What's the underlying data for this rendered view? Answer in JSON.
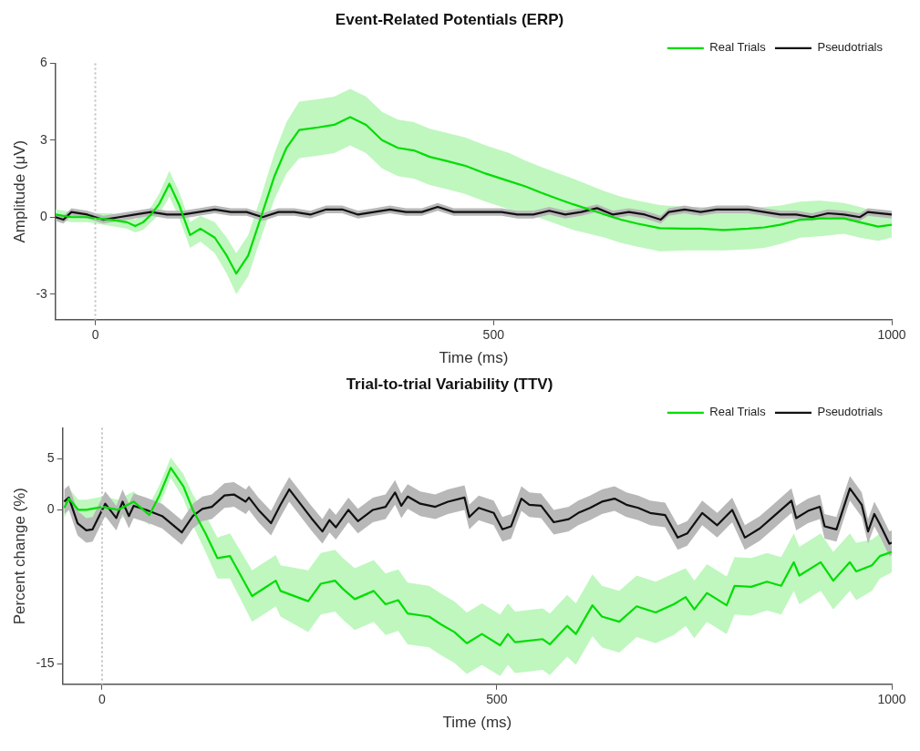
{
  "chart_data": [
    {
      "type": "line",
      "title": "Event-Related Potentials (ERP)",
      "xlabel": "Time (ms)",
      "ylabel": "Amplitude (μV)",
      "xlim": [
        -50,
        1000
      ],
      "xticks": [
        0,
        500,
        1000
      ],
      "ylim": [
        -4,
        6
      ],
      "yticks": [
        -3,
        0,
        3,
        6
      ],
      "legend": "top right",
      "ref_lines": [
        {
          "axis": "x",
          "value": 0,
          "color": "#c0c0c0",
          "line_style": "dotted"
        }
      ],
      "series": [
        {
          "name": "Real Trials",
          "color": "#00dd00",
          "x": [
            -50,
            -30,
            -10,
            0,
            20,
            40,
            50,
            60,
            70,
            80,
            93,
            105,
            119,
            132,
            150,
            165,
            177,
            192,
            208,
            225,
            240,
            256,
            280,
            300,
            320,
            340,
            360,
            380,
            400,
            420,
            440,
            465,
            490,
            520,
            540,
            560,
            580,
            600,
            620,
            640,
            660,
            680,
            709,
            740,
            760,
            789,
            820,
            840,
            860,
            885,
            910,
            940,
            960,
            983,
            1000
          ],
          "values": [
            0.1,
            0,
            0,
            -0.05,
            -0.1,
            -0.2,
            -0.35,
            -0.2,
            0.1,
            0.5,
            1.3,
            0.5,
            -0.7,
            -0.45,
            -0.8,
            -1.5,
            -2.2,
            -1.5,
            0,
            1.6,
            2.7,
            3.4,
            3.5,
            3.6,
            3.9,
            3.6,
            3.0,
            2.7,
            2.6,
            2.35,
            2.2,
            2.0,
            1.7,
            1.4,
            1.2,
            0.95,
            0.72,
            0.5,
            0.3,
            0.1,
            -0.1,
            -0.25,
            -0.43,
            -0.45,
            -0.45,
            -0.5,
            -0.45,
            -0.4,
            -0.3,
            -0.1,
            -0.05,
            -0.05,
            -0.2,
            -0.37,
            -0.3
          ],
          "upper": [
            0.3,
            0.2,
            0.2,
            0.15,
            0.15,
            0.05,
            -0.1,
            0.1,
            0.4,
            0.9,
            1.8,
            1.0,
            -0.2,
            0.05,
            -0.2,
            -0.8,
            -1.4,
            -0.7,
            0.8,
            2.5,
            3.7,
            4.5,
            4.6,
            4.7,
            5.0,
            4.7,
            4.1,
            3.8,
            3.7,
            3.45,
            3.3,
            3.1,
            2.8,
            2.5,
            2.2,
            1.95,
            1.72,
            1.5,
            1.25,
            1.0,
            0.8,
            0.65,
            0.47,
            0.4,
            0.4,
            0.3,
            0.35,
            0.4,
            0.45,
            0.6,
            0.65,
            0.55,
            0.4,
            0.18,
            0.2
          ],
          "lower": [
            -0.1,
            -0.2,
            -0.2,
            -0.25,
            -0.35,
            -0.45,
            -0.6,
            -0.5,
            -0.2,
            0.1,
            0.8,
            0,
            -1.2,
            -0.95,
            -1.4,
            -2.2,
            -3.0,
            -2.3,
            -0.8,
            0.7,
            1.7,
            2.3,
            2.4,
            2.5,
            2.8,
            2.5,
            1.9,
            1.6,
            1.5,
            1.25,
            1.1,
            0.9,
            0.6,
            0.3,
            0.2,
            -0.05,
            -0.28,
            -0.5,
            -0.65,
            -0.8,
            -1.0,
            -1.15,
            -1.33,
            -1.3,
            -1.3,
            -1.3,
            -1.25,
            -1.2,
            -1.05,
            -0.8,
            -0.75,
            -0.65,
            -0.8,
            -0.92,
            -0.8
          ]
        },
        {
          "name": "Pseudotrials",
          "color": "#111111",
          "x": [
            -50,
            -40,
            -30,
            -10,
            0,
            10,
            30,
            50,
            70,
            90,
            110,
            130,
            150,
            170,
            190,
            210,
            230,
            250,
            270,
            290,
            310,
            330,
            350,
            370,
            390,
            410,
            430,
            450,
            470,
            490,
            510,
            530,
            550,
            570,
            590,
            610,
            630,
            650,
            670,
            690,
            710,
            720,
            740,
            760,
            780,
            800,
            820,
            840,
            860,
            880,
            900,
            920,
            940,
            960,
            970,
            1000
          ],
          "values": [
            0,
            -0.1,
            0.2,
            0.1,
            0,
            -0.1,
            0,
            0.1,
            0.2,
            0.1,
            0.1,
            0.2,
            0.3,
            0.2,
            0.2,
            0,
            0.2,
            0.2,
            0.1,
            0.3,
            0.3,
            0.1,
            0.2,
            0.3,
            0.2,
            0.2,
            0.4,
            0.2,
            0.2,
            0.2,
            0.2,
            0.1,
            0.1,
            0.25,
            0.1,
            0.2,
            0.35,
            0.1,
            0.2,
            0.1,
            -0.1,
            0.2,
            0.3,
            0.2,
            0.3,
            0.3,
            0.3,
            0.2,
            0.1,
            0.1,
            0,
            0.15,
            0.1,
            0,
            0.2,
            0.1
          ],
          "upper": [
            0.15,
            0.05,
            0.35,
            0.25,
            0.15,
            0.05,
            0.15,
            0.25,
            0.35,
            0.25,
            0.25,
            0.35,
            0.45,
            0.35,
            0.35,
            0.15,
            0.35,
            0.35,
            0.25,
            0.45,
            0.45,
            0.25,
            0.35,
            0.45,
            0.35,
            0.35,
            0.55,
            0.35,
            0.35,
            0.35,
            0.35,
            0.25,
            0.25,
            0.4,
            0.25,
            0.35,
            0.5,
            0.25,
            0.35,
            0.25,
            0.05,
            0.35,
            0.45,
            0.35,
            0.45,
            0.45,
            0.45,
            0.35,
            0.25,
            0.25,
            0.15,
            0.3,
            0.25,
            0.15,
            0.35,
            0.25
          ],
          "lower": [
            -0.15,
            -0.25,
            0.05,
            -0.05,
            -0.15,
            -0.25,
            -0.15,
            -0.05,
            0.05,
            -0.05,
            -0.05,
            0.05,
            0.15,
            0.05,
            0.05,
            -0.15,
            0.05,
            0.05,
            -0.05,
            0.15,
            0.15,
            -0.05,
            0.05,
            0.15,
            0.05,
            0.05,
            0.25,
            0.05,
            0.05,
            0.05,
            0.05,
            -0.05,
            -0.05,
            0.1,
            -0.05,
            0.05,
            0.2,
            -0.05,
            0.05,
            -0.05,
            -0.25,
            0.05,
            0.15,
            0.05,
            0.15,
            0.15,
            0.15,
            0.05,
            -0.05,
            -0.05,
            -0.15,
            0,
            -0.05,
            -0.15,
            0.05,
            -0.05
          ]
        }
      ]
    },
    {
      "type": "line",
      "title": "Trial-to-trial Variability (TTV)",
      "xlabel": "Time (ms)",
      "ylabel": "Percent change (%)",
      "xlim": [
        -50,
        1000
      ],
      "xticks": [
        0,
        500,
        1000
      ],
      "ylim": [
        -17,
        8
      ],
      "yticks": [
        -15,
        0,
        5
      ],
      "legend": "top right",
      "ref_lines": [
        {
          "axis": "x",
          "value": 0,
          "color": "#c0c0c0",
          "line_style": "dotted"
        }
      ],
      "series": [
        {
          "name": "Real Trials",
          "color": "#00dd00",
          "x": [
            -48,
            -42,
            -30,
            -20,
            1,
            20,
            40,
            60,
            72,
            87,
            103,
            115,
            131,
            146,
            162,
            190,
            206,
            220,
            226,
            261,
            277,
            295,
            305,
            320,
            344,
            359,
            375,
            387,
            414,
            430,
            446,
            462,
            481,
            504,
            514,
            523,
            558,
            567,
            589,
            600,
            621,
            633,
            655,
            677,
            701,
            724,
            739,
            750,
            766,
            791,
            801,
            822,
            842,
            860,
            876,
            883,
            910,
            926,
            947,
            955,
            975,
            985,
            1000
          ],
          "values": [
            0.2,
            1.1,
            0,
            0,
            0.3,
            0,
            0.8,
            -0.5,
            1.3,
            4.1,
            2.3,
            0,
            -2.3,
            -4.7,
            -4.5,
            -8.4,
            -7.6,
            -6.9,
            -7.9,
            -8.9,
            -7.2,
            -6.9,
            -7.7,
            -8.7,
            -7.9,
            -9.2,
            -8.8,
            -10.1,
            -10.4,
            -11.2,
            -11.9,
            -13.0,
            -12.1,
            -13.2,
            -12.1,
            -12.9,
            -12.6,
            -13.1,
            -11.3,
            -12.1,
            -9.3,
            -10.4,
            -10.9,
            -9.4,
            -10.0,
            -9.2,
            -8.5,
            -9.7,
            -8.1,
            -9.3,
            -7.4,
            -7.5,
            -7.0,
            -7.4,
            -5.1,
            -6.4,
            -5.1,
            -6.9,
            -5.1,
            -6.0,
            -5.4,
            -4.5,
            -4.1
          ],
          "upper": [
            1.2,
            2.1,
            1,
            1,
            1.3,
            1,
            1.8,
            0.5,
            2.3,
            5.1,
            3.5,
            1.5,
            -0.5,
            -2.7,
            -2.3,
            -5.9,
            -5.1,
            -4.4,
            -5.4,
            -5.9,
            -4.2,
            -3.9,
            -4.7,
            -5.7,
            -4.9,
            -6.2,
            -5.8,
            -7.1,
            -7.4,
            -8.2,
            -8.9,
            -10.0,
            -9.1,
            -10.2,
            -9.1,
            -9.9,
            -9.6,
            -10.1,
            -8.3,
            -9.1,
            -6.3,
            -7.4,
            -7.9,
            -6.4,
            -7.0,
            -6.2,
            -5.7,
            -6.9,
            -5.3,
            -6.5,
            -4.6,
            -4.7,
            -4.2,
            -4.6,
            -2.3,
            -3.6,
            -2.3,
            -4.1,
            -2.3,
            -3.2,
            -2.9,
            -2.3,
            -2.1
          ],
          "lower": [
            -0.8,
            0.1,
            -1,
            -1,
            -0.7,
            -1,
            -0.2,
            -1.5,
            0.3,
            3.1,
            1.1,
            -1.5,
            -4.1,
            -6.7,
            -6.7,
            -10.9,
            -10.1,
            -9.4,
            -10.4,
            -11.9,
            -10.2,
            -9.9,
            -10.7,
            -11.7,
            -10.9,
            -12.2,
            -11.8,
            -13.1,
            -13.4,
            -14.2,
            -14.9,
            -16.0,
            -15.1,
            -16.2,
            -15.1,
            -15.9,
            -15.6,
            -16.1,
            -14.3,
            -15.1,
            -12.3,
            -13.4,
            -13.9,
            -12.4,
            -13.0,
            -12.2,
            -11.3,
            -12.5,
            -10.9,
            -12.1,
            -10.2,
            -10.3,
            -9.8,
            -10.2,
            -7.9,
            -9.2,
            -7.9,
            -9.7,
            -7.9,
            -8.8,
            -7.9,
            -6.7,
            -6.1
          ]
        },
        {
          "name": "Pseudotrials",
          "color": "#111111",
          "x": [
            -48,
            -42,
            -31,
            -20,
            -12,
            4,
            18,
            26,
            34,
            40,
            56,
            76,
            101,
            115,
            127,
            139,
            155,
            167,
            182,
            186,
            198,
            214,
            226,
            237,
            249,
            265,
            279,
            288,
            296,
            312,
            324,
            343,
            359,
            371,
            379,
            387,
            403,
            422,
            438,
            459,
            465,
            477,
            496,
            507,
            518,
            531,
            541,
            556,
            572,
            591,
            603,
            618,
            633,
            649,
            664,
            679,
            694,
            713,
            729,
            741,
            760,
            779,
            798,
            814,
            833,
            848,
            873,
            879,
            894,
            909,
            915,
            930,
            947,
            962,
            970,
            978,
            985,
            997,
            1000
          ],
          "values": [
            0.8,
            1.2,
            -1.3,
            -2.0,
            -1.9,
            0.6,
            -0.8,
            0.8,
            -0.6,
            0.4,
            0,
            -0.6,
            -2.2,
            -0.6,
            0.1,
            0.3,
            1.4,
            1.5,
            0.8,
            1.2,
            0,
            -1.3,
            0.5,
            2.0,
            0.8,
            -0.8,
            -2.1,
            -1.0,
            -1.7,
            0,
            -1.1,
            0,
            0.3,
            1.7,
            0.4,
            1.3,
            0.6,
            0.3,
            0.8,
            1.2,
            -0.7,
            0.2,
            -0.3,
            -1.9,
            -1.6,
            1.1,
            0.5,
            0.4,
            -1.2,
            -0.9,
            -0.3,
            0.2,
            0.8,
            1.1,
            0.5,
            0.2,
            -0.3,
            -0.5,
            -2.7,
            -2.3,
            -0.3,
            -1.5,
            0,
            -2.7,
            -1.8,
            -0.8,
            0.9,
            -0.8,
            -0.1,
            0.3,
            -1.6,
            -1.9,
            2.1,
            0.5,
            -2.1,
            -0.4,
            -1.4,
            -3.3,
            -3.2
          ],
          "upper": [
            2.0,
            2.4,
            -0.1,
            -0.8,
            -0.7,
            1.8,
            0.4,
            2.0,
            0.6,
            1.6,
            1.2,
            0.6,
            -1.0,
            0.6,
            1.3,
            1.5,
            2.6,
            2.7,
            2.0,
            2.4,
            1.2,
            -0.1,
            1.7,
            3.2,
            2.0,
            0.4,
            -0.9,
            0.2,
            -0.5,
            1.2,
            0.1,
            1.2,
            1.5,
            2.9,
            1.6,
            2.5,
            1.8,
            1.5,
            2.0,
            2.4,
            0.5,
            1.4,
            0.9,
            -0.7,
            -0.4,
            2.3,
            1.7,
            1.6,
            0,
            0.3,
            0.9,
            1.4,
            2.0,
            2.3,
            1.7,
            1.4,
            0.9,
            0.7,
            -1.5,
            -1.1,
            0.9,
            -0.3,
            1.2,
            -1.5,
            -0.6,
            0.4,
            2.1,
            0.4,
            1.1,
            1.5,
            -0.4,
            -0.7,
            3.3,
            1.7,
            -0.9,
            0.8,
            -0.2,
            -2.1,
            -2.0
          ],
          "lower": [
            -0.4,
            0,
            -2.5,
            -3.2,
            -3.1,
            -0.6,
            -2.0,
            -0.4,
            -1.8,
            -0.8,
            -1.2,
            -1.8,
            -3.4,
            -1.8,
            -1.1,
            -0.9,
            0.2,
            0.3,
            -0.4,
            0,
            -1.2,
            -2.5,
            -0.7,
            0.8,
            -0.4,
            -2.0,
            -3.3,
            -2.2,
            -2.9,
            -1.2,
            -2.3,
            -1.2,
            -0.9,
            0.5,
            -0.8,
            0.1,
            -0.6,
            -0.9,
            -0.4,
            0,
            -1.9,
            -1.0,
            -1.5,
            -3.1,
            -2.8,
            -0.1,
            -0.7,
            -0.8,
            -2.4,
            -2.1,
            -1.5,
            -1.0,
            -0.4,
            -0.1,
            -0.7,
            -1.0,
            -1.5,
            -1.7,
            -3.9,
            -3.5,
            -1.5,
            -2.7,
            -1.2,
            -3.9,
            -3.0,
            -2.0,
            -0.3,
            -2.0,
            -1.3,
            -0.9,
            -2.8,
            -3.1,
            0.9,
            -0.7,
            -3.3,
            -1.6,
            -2.6,
            -4.5,
            -4.4
          ]
        }
      ]
    }
  ]
}
